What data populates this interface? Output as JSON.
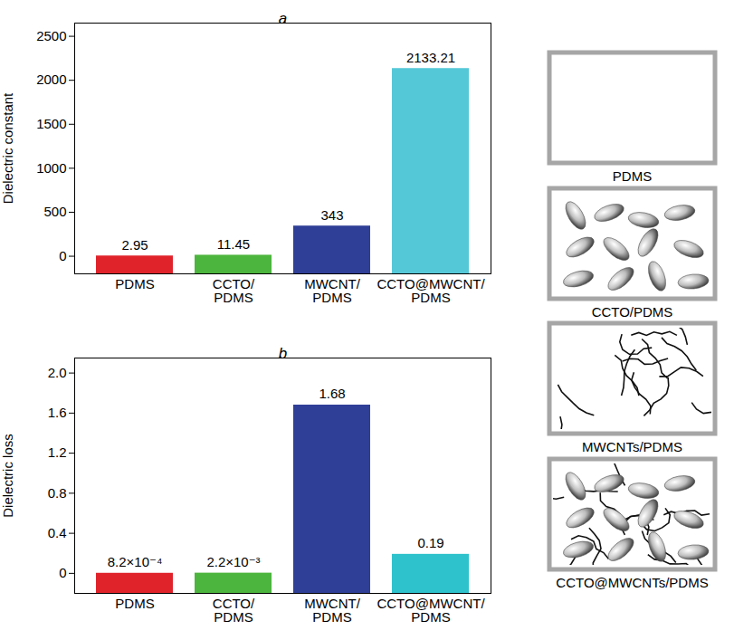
{
  "chart_data": [
    {
      "type": "bar",
      "title": "a",
      "y_label": "Dielectric constant",
      "categories": [
        "PDMS",
        "CCTO/PDMS",
        "MWCNT/PDMS",
        "CCTO@MWCNT/PDMS"
      ],
      "values": [
        2.95,
        11.45,
        343,
        2133.21
      ],
      "colors": [
        "#e0232b",
        "#4cb53d",
        "#2f3f97",
        "#55c8d8"
      ],
      "ylim": [
        -200,
        2650
      ],
      "yticks": [
        0,
        500,
        1000,
        1500,
        2000,
        2500
      ],
      "data_labels": true
    },
    {
      "type": "bar",
      "title": "b",
      "y_label": "Dielectric loss",
      "categories": [
        "PDMS",
        "CCTO/PDMS",
        "MWCNT/PDMS",
        "CCTO@MWCNT/PDMS"
      ],
      "values": [
        0.00082,
        0.0022,
        1.68,
        0.19
      ],
      "value_labels": [
        "8.2×10⁻⁴",
        "2.2×10⁻³",
        "1.68",
        "0.19"
      ],
      "colors": [
        "#e0232b",
        "#4cb53d",
        "#2f3f97",
        "#2ec2cc"
      ],
      "ylim": [
        -0.2,
        2.15
      ],
      "yticks": [
        0,
        0.4,
        0.8,
        1.2,
        1.6,
        {
          "value": 2,
          "label": "2.0"
        }
      ],
      "data_labels": true
    }
  ],
  "diagram": {
    "panels": [
      {
        "label": "PDMS"
      },
      {
        "label": "CCTO/PDMS"
      },
      {
        "label": "MWCNTs/PDMS"
      },
      {
        "label": "CCTO@MWCNTs/PDMS"
      }
    ]
  }
}
